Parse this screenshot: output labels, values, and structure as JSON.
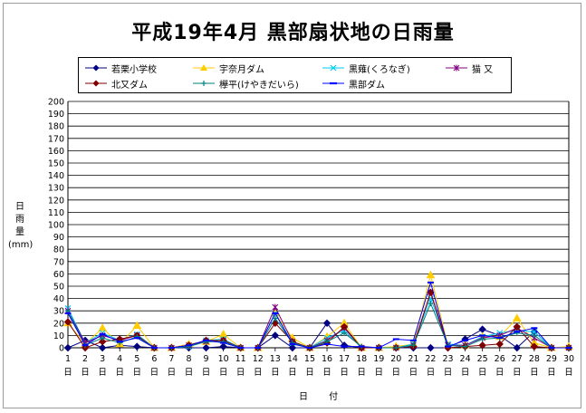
{
  "chart_data": {
    "type": "line",
    "title": "平成19年4月 黒部扇状地の日雨量",
    "ylabel": [
      "日",
      "雨",
      "量",
      "(mm)"
    ],
    "xlabel": "日 付",
    "ylim": [
      0,
      200
    ],
    "yticks": [
      0,
      10,
      20,
      30,
      40,
      50,
      60,
      70,
      80,
      90,
      100,
      110,
      120,
      130,
      140,
      150,
      160,
      170,
      180,
      190,
      200
    ],
    "grid": true,
    "legend_position": "top",
    "x": [
      1,
      2,
      3,
      4,
      5,
      6,
      7,
      8,
      9,
      10,
      11,
      12,
      13,
      14,
      15,
      16,
      17,
      18,
      19,
      20,
      21,
      22,
      23,
      24,
      25,
      26,
      27,
      28,
      29,
      30
    ],
    "x_tick_suffix": "日",
    "series": [
      {
        "name": "若栗小学校",
        "color": "#000080",
        "marker": "diamond",
        "values": [
          0,
          6,
          0,
          2,
          1,
          0,
          0,
          0,
          0,
          1,
          0,
          0,
          10,
          0,
          0,
          20,
          2,
          0,
          0,
          0,
          0,
          0,
          0,
          7,
          15,
          10,
          0,
          13,
          0,
          0
        ]
      },
      {
        "name": "宇奈月ダム",
        "color": "#FFCC00",
        "marker": "triangle",
        "values": [
          20,
          3,
          16,
          3,
          18,
          0,
          0,
          3,
          5,
          11,
          0,
          0,
          28,
          8,
          0,
          9,
          20,
          0,
          0,
          1,
          3,
          59,
          2,
          2,
          9,
          9,
          24,
          4,
          0,
          1
        ]
      },
      {
        "name": "黒薙(くろなぎ)",
        "color": "#00CCFF",
        "marker": "x",
        "values": [
          32,
          4,
          12,
          6,
          11,
          0,
          0,
          1,
          6,
          7,
          0,
          0,
          28,
          4,
          0,
          8,
          14,
          0,
          0,
          0,
          3,
          40,
          3,
          2,
          9,
          12,
          14,
          13,
          0,
          0
        ]
      },
      {
        "name": "猫 又",
        "color": "#800080",
        "marker": "star",
        "values": [
          30,
          4,
          10,
          6,
          10,
          0,
          0,
          2,
          5,
          6,
          0,
          0,
          33,
          5,
          0,
          6,
          16,
          0,
          0,
          0,
          2,
          45,
          2,
          2,
          8,
          10,
          16,
          8,
          0,
          0
        ]
      },
      {
        "name": "北又ダム",
        "color": "#800000",
        "marker": "diamond",
        "values": [
          21,
          0,
          5,
          7,
          10,
          0,
          0,
          2,
          6,
          6,
          0,
          0,
          20,
          5,
          0,
          4,
          17,
          0,
          0,
          0,
          1,
          45,
          0,
          1,
          2,
          3,
          17,
          1,
          0,
          0
        ]
      },
      {
        "name": "欅平(けやきだいら)",
        "color": "#008080",
        "marker": "plus",
        "values": [
          30,
          2,
          8,
          4,
          9,
          0,
          0,
          1,
          5,
          5,
          0,
          0,
          24,
          4,
          0,
          5,
          12,
          1,
          0,
          0,
          2,
          36,
          2,
          1,
          7,
          8,
          12,
          10,
          0,
          0
        ]
      },
      {
        "name": "黒部ダム",
        "color": "#0000FF",
        "marker": "dash",
        "values": [
          28,
          2,
          11,
          5,
          8,
          0,
          0,
          2,
          6,
          4,
          0,
          0,
          28,
          3,
          0,
          3,
          1,
          1,
          0,
          7,
          6,
          53,
          1,
          6,
          10,
          8,
          13,
          16,
          0,
          0
        ]
      }
    ]
  }
}
